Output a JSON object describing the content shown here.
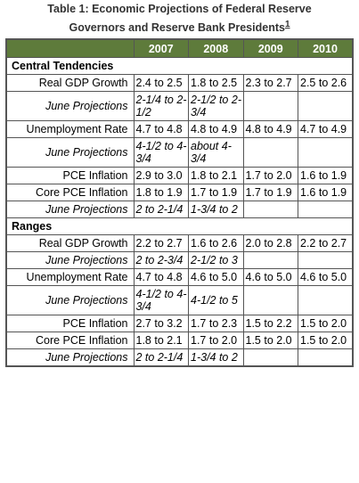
{
  "title": {
    "text": "Table 1: Economic Projections of Federal Reserve Governors and Reserve Bank Presidents",
    "footnote": "1"
  },
  "header": [
    "2007",
    "2008",
    "2009",
    "2010"
  ],
  "sections": [
    {
      "name": "Central Tendencies",
      "rows": [
        {
          "label": "Real GDP Growth",
          "cells": [
            "2.4 to 2.5",
            "1.8 to 2.5",
            "2.3 to 2.7",
            "2.5 to 2.6"
          ]
        },
        {
          "label": "June Projections",
          "italic": true,
          "cells": [
            "2-1/4 to 2-1/2",
            "2-1/2 to 2-3/4",
            null,
            null
          ]
        },
        {
          "label": "Unemployment Rate",
          "cells": [
            "4.7 to 4.8",
            "4.8 to 4.9",
            "4.8 to 4.9",
            "4.7 to 4.9"
          ]
        },
        {
          "label": "June Projections",
          "italic": true,
          "cells": [
            "4-1/2 to 4-3/4",
            "about 4-3/4",
            null,
            null
          ]
        },
        {
          "label": "PCE Inflation",
          "cells": [
            "2.9 to 3.0",
            "1.8 to 2.1",
            "1.7 to 2.0",
            "1.6 to 1.9"
          ]
        },
        {
          "label": "Core PCE Inflation",
          "cells": [
            "1.8 to 1.9",
            "1.7 to 1.9",
            "1.7 to 1.9",
            "1.6 to 1.9"
          ]
        },
        {
          "label": "June Projections",
          "italic": true,
          "cells": [
            "2 to 2-1/4",
            "1-3/4 to 2",
            null,
            null
          ]
        }
      ]
    },
    {
      "name": "Ranges",
      "rows": [
        {
          "label": "Real GDP Growth",
          "cells": [
            "2.2 to 2.7",
            "1.6 to 2.6",
            "2.0 to 2.8",
            "2.2 to 2.7"
          ]
        },
        {
          "label": "June Projections",
          "italic": true,
          "cells": [
            "2 to 2-3/4",
            "2-1/2 to 3",
            null,
            null
          ]
        },
        {
          "label": "Unemployment Rate",
          "cells": [
            "4.7 to 4.8",
            "4.6 to 5.0",
            "4.6 to 5.0",
            "4.6 to 5.0"
          ]
        },
        {
          "label": "June Projections",
          "italic": true,
          "cells": [
            "4-1/2 to 4-3/4",
            "4-1/2 to 5",
            null,
            null
          ]
        },
        {
          "label": "PCE Inflation",
          "cells": [
            "2.7 to 3.2",
            "1.7 to 2.3",
            "1.5 to 2.2",
            "1.5 to 2.0"
          ]
        },
        {
          "label": "Core PCE Inflation",
          "cells": [
            "1.8 to 2.1",
            "1.7 to 2.0",
            "1.5 to 2.0",
            "1.5 to 2.0"
          ]
        },
        {
          "label": "June Projections",
          "italic": true,
          "cells": [
            "2 to 2-1/4",
            "1-3/4 to 2",
            null,
            null
          ]
        }
      ]
    }
  ]
}
